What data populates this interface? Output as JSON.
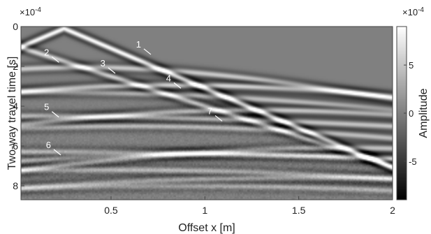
{
  "chart_data": {
    "type": "heatmap",
    "xlabel": "Offset x [m]",
    "ylabel": "Two-way travel time [s]",
    "xlim": [
      0.02,
      2.0
    ],
    "ylim": [
      0,
      8.7
    ],
    "y_axis_reversed": true,
    "y_scale_label": "×10",
    "y_scale_exp": "-4",
    "x_ticks": [
      {
        "value": 0.5,
        "label": "0.5"
      },
      {
        "value": 1.0,
        "label": "1"
      },
      {
        "value": 1.5,
        "label": "1.5"
      },
      {
        "value": 2.0,
        "label": "2"
      }
    ],
    "y_ticks": [
      {
        "value": 0,
        "label": "0"
      },
      {
        "value": 2,
        "label": "2"
      },
      {
        "value": 4,
        "label": "4"
      },
      {
        "value": 6,
        "label": "6"
      },
      {
        "value": 8,
        "label": "8"
      }
    ],
    "colorbar": {
      "label": "Amplitude",
      "scale_label": "×10",
      "scale_exp": "-4",
      "range": [
        -9,
        9
      ],
      "ticks": [
        {
          "value": 5,
          "label": "5"
        },
        {
          "value": 0,
          "label": "0"
        },
        {
          "value": -5,
          "label": "-5"
        }
      ],
      "colormap": "gray"
    },
    "event_labels": [
      {
        "label": "1",
        "x": 0.66,
        "y": 1.05
      },
      {
        "label": "2",
        "x": 0.17,
        "y": 1.45
      },
      {
        "label": "3",
        "x": 0.47,
        "y": 2.0
      },
      {
        "label": "4",
        "x": 0.82,
        "y": 2.75
      },
      {
        "label": "5",
        "x": 0.17,
        "y": 4.2
      },
      {
        "label": "6",
        "x": 0.18,
        "y": 6.1
      },
      {
        "label": "7",
        "x": 1.04,
        "y": 4.4
      }
    ],
    "events": [
      {
        "type": "direct",
        "t0": 0.0,
        "apex_x": 0.25,
        "apex_t": 0.1,
        "slope": 4.0,
        "amp": 1.0
      },
      {
        "type": "direct",
        "t0": 1.0,
        "apex_x": 0.0,
        "apex_t": 1.0,
        "slope": 3.0,
        "amp": 0.7
      },
      {
        "type": "hyper",
        "x0": 0.35,
        "t0": 2.05,
        "v": 0.55,
        "amp": 0.6
      },
      {
        "type": "hyper",
        "x0": 0.85,
        "t0": 2.95,
        "v": 0.6,
        "amp": 0.7
      },
      {
        "type": "hyper",
        "x0": 0.2,
        "t0": 3.3,
        "v": 0.7,
        "amp": 0.5
      },
      {
        "type": "hyper",
        "x0": 0.02,
        "t0": 4.5,
        "v": 0.9,
        "amp": 0.55
      },
      {
        "type": "hyper",
        "x0": 1.3,
        "t0": 4.2,
        "v": 0.5,
        "amp": 0.6
      },
      {
        "type": "hyper",
        "x0": 0.6,
        "t0": 5.0,
        "v": 0.55,
        "amp": 0.5
      },
      {
        "type": "hyper",
        "x0": 1.75,
        "t0": 6.1,
        "v": 0.45,
        "amp": 0.55
      },
      {
        "type": "hyper",
        "x0": 1.1,
        "t0": 6.4,
        "v": 0.5,
        "amp": 0.45
      },
      {
        "type": "hyper",
        "x0": 0.05,
        "t0": 6.3,
        "v": 0.9,
        "amp": 0.5
      },
      {
        "type": "hyper",
        "x0": 0.45,
        "t0": 7.2,
        "v": 0.6,
        "amp": 0.45
      },
      {
        "type": "hyper",
        "x0": 1.55,
        "t0": 7.6,
        "v": 0.55,
        "amp": 0.45
      },
      {
        "type": "hyper",
        "x0": 0.9,
        "t0": 8.0,
        "v": 0.55,
        "amp": 0.4
      }
    ]
  }
}
